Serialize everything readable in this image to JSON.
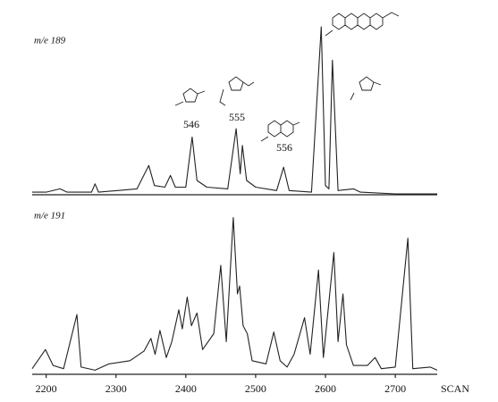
{
  "chart_data": [
    {
      "type": "line",
      "title": "m/e 189",
      "color": "#222222",
      "x": [
        2180,
        2200,
        2220,
        2230,
        2265,
        2270,
        2275,
        2330,
        2347,
        2355,
        2370,
        2378,
        2385,
        2400,
        2409,
        2416,
        2430,
        2460,
        2472,
        2478,
        2481,
        2487,
        2500,
        2530,
        2540,
        2548,
        2580,
        2594,
        2600,
        2605,
        2610,
        2618,
        2640,
        2650,
        2700,
        2760
      ],
      "values": [
        1,
        1,
        3,
        1,
        1,
        6,
        1,
        3,
        17,
        5,
        4,
        11,
        4,
        4,
        34,
        8,
        4,
        3,
        39,
        12,
        29,
        8,
        4,
        2,
        16,
        2,
        1,
        100,
        5,
        3,
        80,
        2,
        3,
        1,
        0,
        0
      ],
      "xlim": [
        2180,
        2760
      ],
      "ylim": [
        0,
        100
      ],
      "annotations": [
        "546",
        "555",
        "556"
      ]
    },
    {
      "type": "line",
      "title": "m/e 191",
      "color": "#222222",
      "x": [
        2180,
        2199,
        2210,
        2225,
        2244,
        2250,
        2270,
        2290,
        2320,
        2340,
        2350,
        2356,
        2363,
        2372,
        2380,
        2390,
        2395,
        2402,
        2408,
        2416,
        2424,
        2440,
        2450,
        2458,
        2468,
        2474,
        2477,
        2482,
        2488,
        2495,
        2515,
        2526,
        2535,
        2545,
        2555,
        2570,
        2578,
        2590,
        2597,
        2612,
        2618,
        2625,
        2630,
        2640,
        2660,
        2671,
        2680,
        2700,
        2718,
        2725,
        2750,
        2760
      ],
      "values": [
        3,
        15,
        5,
        3,
        37,
        4,
        2,
        6,
        8,
        14,
        22,
        12,
        27,
        10,
        20,
        40,
        28,
        48,
        30,
        38,
        15,
        25,
        68,
        20,
        98,
        50,
        55,
        30,
        25,
        8,
        6,
        26,
        8,
        4,
        12,
        35,
        12,
        65,
        10,
        76,
        20,
        50,
        18,
        5,
        5,
        10,
        3,
        4,
        85,
        3,
        4,
        2
      ],
      "xlim": [
        2180,
        2760
      ],
      "ylim": [
        0,
        100
      ],
      "xticks": [
        2200,
        2300,
        2400,
        2500,
        2600,
        2700
      ],
      "xlabel": "SCAN"
    }
  ]
}
